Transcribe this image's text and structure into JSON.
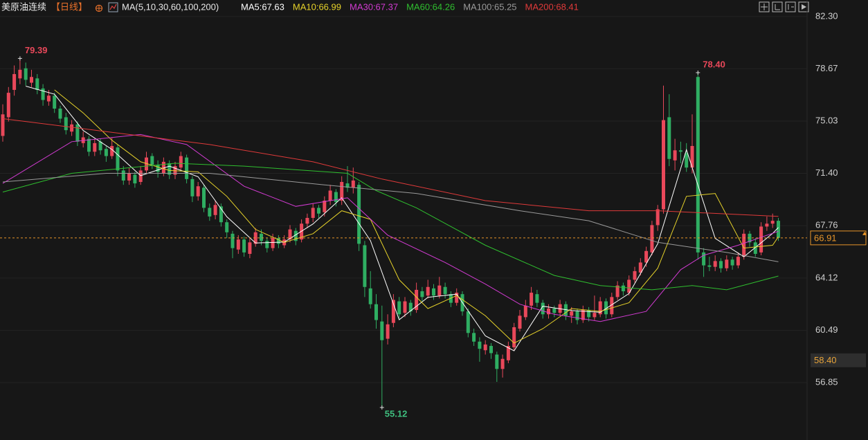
{
  "chart_data": {
    "type": "candlestick",
    "title": "美原油连续",
    "period": "【日线】",
    "indicator": "MA(5,10,30,60,100,200)",
    "up_color": "#e9485a",
    "down_color": "#2fae62",
    "ylim": [
      54.11,
      83.45
    ],
    "yticks": [
      {
        "value": 82.3,
        "label": "82.30"
      },
      78.67,
      75.03,
      {
        "value": 71.4,
        "label": "71.40"
      },
      67.76,
      64.12,
      60.49,
      56.85
    ],
    "grid": true,
    "max_labels": [
      {
        "value": 79.39,
        "label": "79.39"
      },
      {
        "value": 78.4,
        "label": "78.40"
      }
    ],
    "min_labels": [
      {
        "value": 55.12,
        "label": "55.12"
      }
    ],
    "last_price": 66.91,
    "last_price_color": "#e8962a",
    "price_marker": {
      "value": 58.4,
      "label": "58.40"
    },
    "ohlc": [
      [
        74.0,
        76.2,
        73.6,
        75.5
      ],
      [
        75.3,
        77.4,
        75.0,
        77.0
      ],
      [
        77.2,
        78.9,
        76.8,
        78.3
      ],
      [
        78.0,
        79.39,
        77.6,
        78.6
      ],
      [
        78.7,
        79.1,
        77.5,
        77.9
      ],
      [
        77.7,
        78.6,
        77.4,
        78.1
      ],
      [
        78.0,
        78.3,
        76.9,
        77.2
      ],
      [
        77.3,
        77.6,
        76.1,
        76.5
      ],
      [
        76.4,
        77.2,
        76.1,
        76.8
      ],
      [
        76.8,
        77.0,
        75.6,
        75.9
      ],
      [
        75.9,
        76.1,
        74.9,
        75.2
      ],
      [
        75.3,
        75.6,
        74.1,
        74.4
      ],
      [
        74.3,
        75.1,
        74.0,
        74.8
      ],
      [
        74.8,
        75.0,
        73.3,
        73.6
      ],
      [
        73.5,
        74.3,
        73.2,
        73.9
      ],
      [
        73.8,
        74.0,
        72.6,
        72.9
      ],
      [
        72.9,
        73.8,
        72.6,
        73.5
      ],
      [
        73.6,
        73.8,
        72.7,
        73.0
      ],
      [
        73.1,
        73.3,
        72.2,
        72.6
      ],
      [
        72.6,
        73.9,
        72.4,
        73.3
      ],
      [
        73.2,
        73.4,
        71.2,
        71.6
      ],
      [
        71.6,
        71.9,
        70.6,
        70.9
      ],
      [
        70.9,
        71.8,
        70.6,
        71.4
      ],
      [
        71.3,
        71.5,
        70.4,
        70.7
      ],
      [
        70.8,
        71.9,
        70.6,
        71.6
      ],
      [
        71.6,
        72.9,
        71.4,
        72.5
      ],
      [
        72.6,
        72.8,
        71.7,
        72.0
      ],
      [
        72.0,
        72.3,
        71.1,
        71.5
      ],
      [
        71.4,
        72.5,
        71.2,
        72.2
      ],
      [
        72.1,
        72.3,
        71.0,
        71.3
      ],
      [
        71.3,
        72.2,
        71.0,
        71.9
      ],
      [
        71.8,
        72.9,
        71.6,
        72.6
      ],
      [
        72.5,
        72.7,
        70.7,
        71.0
      ],
      [
        71.0,
        71.2,
        69.4,
        69.8
      ],
      [
        69.8,
        70.8,
        69.5,
        70.5
      ],
      [
        70.4,
        70.6,
        68.7,
        69.0
      ],
      [
        69.0,
        69.3,
        68.1,
        68.4
      ],
      [
        68.5,
        69.5,
        68.2,
        69.2
      ],
      [
        69.1,
        69.3,
        67.7,
        68.0
      ],
      [
        68.0,
        68.2,
        66.9,
        67.3
      ],
      [
        67.2,
        67.4,
        65.5,
        66.2
      ],
      [
        66.1,
        67.1,
        65.8,
        66.8
      ],
      [
        66.8,
        67.0,
        65.6,
        65.9
      ],
      [
        65.8,
        66.9,
        65.5,
        66.6
      ],
      [
        66.5,
        67.6,
        66.3,
        67.3
      ],
      [
        67.2,
        67.5,
        66.4,
        66.7
      ],
      [
        66.7,
        66.9,
        65.9,
        66.2
      ],
      [
        66.2,
        67.2,
        66.0,
        66.9
      ],
      [
        66.9,
        67.1,
        66.2,
        66.5
      ],
      [
        66.4,
        67.1,
        66.2,
        66.8
      ],
      [
        66.8,
        67.8,
        66.6,
        67.5
      ],
      [
        67.4,
        67.6,
        66.4,
        66.7
      ],
      [
        66.8,
        68.2,
        66.6,
        67.9
      ],
      [
        67.9,
        68.6,
        67.6,
        68.3
      ],
      [
        68.3,
        69.3,
        68.0,
        69.0
      ],
      [
        69.0,
        69.2,
        68.3,
        68.6
      ],
      [
        68.7,
        69.8,
        68.4,
        69.5
      ],
      [
        69.5,
        70.6,
        69.2,
        70.2
      ],
      [
        70.1,
        70.3,
        69.1,
        69.4
      ],
      [
        69.5,
        71.2,
        69.2,
        70.8
      ],
      [
        70.7,
        71.9,
        70.1,
        70.4
      ],
      [
        70.4,
        71.8,
        70.0,
        70.9
      ],
      [
        70.6,
        70.8,
        66.0,
        66.5
      ],
      [
        66.4,
        66.7,
        62.8,
        63.5
      ],
      [
        63.4,
        64.6,
        62.0,
        62.3
      ],
      [
        62.3,
        63.0,
        60.6,
        61.2
      ],
      [
        61.1,
        62.2,
        55.12,
        59.8
      ],
      [
        59.9,
        61.6,
        59.5,
        60.9
      ],
      [
        61.0,
        63.0,
        60.7,
        62.6
      ],
      [
        62.5,
        62.8,
        61.3,
        61.6
      ],
      [
        61.7,
        62.8,
        61.4,
        62.5
      ],
      [
        62.4,
        62.6,
        61.5,
        61.8
      ],
      [
        61.9,
        63.8,
        61.7,
        63.3
      ],
      [
        63.2,
        63.5,
        62.5,
        62.8
      ],
      [
        62.9,
        64.0,
        62.7,
        63.5
      ],
      [
        63.4,
        63.7,
        62.6,
        62.9
      ],
      [
        62.9,
        64.2,
        62.7,
        63.6
      ],
      [
        63.5,
        63.8,
        62.7,
        63.0
      ],
      [
        63.0,
        63.2,
        62.1,
        62.4
      ],
      [
        62.4,
        63.4,
        62.2,
        63.1
      ],
      [
        63.0,
        63.2,
        61.5,
        61.8
      ],
      [
        61.8,
        62.0,
        60.0,
        60.3
      ],
      [
        60.3,
        60.6,
        59.4,
        59.7
      ],
      [
        59.7,
        60.0,
        58.3,
        59.2
      ],
      [
        59.1,
        59.8,
        58.8,
        59.5
      ],
      [
        59.4,
        59.6,
        58.5,
        58.9
      ],
      [
        58.8,
        59.0,
        56.9,
        57.8
      ],
      [
        57.8,
        58.8,
        57.2,
        58.5
      ],
      [
        58.4,
        59.7,
        58.2,
        59.4
      ],
      [
        59.3,
        61.0,
        59.1,
        60.7
      ],
      [
        60.6,
        61.9,
        60.4,
        61.5
      ],
      [
        61.4,
        62.6,
        61.2,
        62.2
      ],
      [
        62.2,
        63.5,
        61.9,
        63.1
      ],
      [
        63.0,
        63.3,
        62.1,
        62.4
      ],
      [
        62.4,
        62.6,
        61.3,
        61.6
      ],
      [
        61.6,
        62.3,
        61.3,
        62.0
      ],
      [
        62.0,
        62.2,
        61.4,
        61.7
      ],
      [
        61.7,
        62.6,
        61.5,
        62.3
      ],
      [
        62.3,
        62.5,
        61.2,
        61.5
      ],
      [
        61.5,
        62.1,
        61.0,
        61.8
      ],
      [
        61.8,
        62.0,
        60.9,
        61.2
      ],
      [
        61.2,
        62.2,
        61.0,
        61.9
      ],
      [
        61.9,
        62.1,
        61.1,
        61.4
      ],
      [
        61.4,
        62.9,
        61.2,
        61.7
      ],
      [
        61.6,
        62.8,
        61.4,
        62.5
      ],
      [
        62.5,
        62.7,
        61.3,
        61.6
      ],
      [
        61.6,
        63.1,
        61.4,
        62.8
      ],
      [
        62.8,
        63.9,
        62.6,
        63.6
      ],
      [
        63.6,
        63.8,
        62.9,
        63.2
      ],
      [
        63.1,
        64.3,
        62.9,
        64.0
      ],
      [
        64.0,
        64.9,
        63.8,
        64.6
      ],
      [
        64.5,
        65.5,
        64.3,
        65.2
      ],
      [
        65.2,
        66.3,
        64.9,
        66.0
      ],
      [
        65.9,
        68.1,
        65.7,
        67.8
      ],
      [
        67.8,
        69.2,
        67.4,
        68.9
      ],
      [
        68.9,
        77.5,
        68.6,
        75.1
      ],
      [
        75.3,
        76.9,
        71.9,
        72.4
      ],
      [
        72.3,
        73.8,
        71.6,
        73.0
      ],
      [
        73.0,
        73.6,
        72.1,
        72.9
      ],
      [
        72.8,
        73.5,
        71.5,
        71.8
      ],
      [
        71.8,
        75.5,
        71.4,
        73.3
      ],
      [
        78.1,
        78.4,
        65.4,
        65.9
      ],
      [
        65.9,
        66.2,
        64.2,
        65.0
      ],
      [
        65.0,
        65.6,
        64.6,
        64.9
      ],
      [
        64.9,
        65.7,
        64.6,
        65.3
      ],
      [
        65.3,
        65.5,
        64.5,
        64.8
      ],
      [
        64.8,
        65.7,
        64.6,
        65.4
      ],
      [
        65.4,
        65.6,
        64.7,
        65.0
      ],
      [
        65.0,
        65.9,
        64.8,
        65.6
      ],
      [
        65.6,
        67.5,
        65.4,
        67.2
      ],
      [
        67.2,
        67.4,
        66.3,
        66.6
      ],
      [
        66.6,
        66.9,
        65.6,
        65.8
      ],
      [
        65.9,
        68.0,
        65.7,
        67.7
      ],
      [
        67.7,
        68.4,
        67.4,
        67.9
      ],
      [
        67.9,
        68.6,
        67.6,
        68.1
      ],
      [
        68.1,
        68.3,
        66.7,
        66.91
      ]
    ],
    "series": [
      {
        "name": "MA5:67.63",
        "color": "#ffffff",
        "x": [
          4,
          9,
          14,
          19,
          24,
          29,
          34,
          39,
          44,
          49,
          54,
          59,
          64,
          69,
          74,
          79,
          84,
          89,
          94,
          99,
          104,
          109,
          114,
          119,
          124,
          129,
          134,
          135
        ],
        "values": [
          77.46,
          76.9,
          74.38,
          73.06,
          71.24,
          71.9,
          71.16,
          68.38,
          66.56,
          66.62,
          67.88,
          69.7,
          66.72,
          61.22,
          62.78,
          63.0,
          60.1,
          59.06,
          62.16,
          61.86,
          61.74,
          63.04,
          66.5,
          73.04,
          66.88,
          65.6,
          67.22,
          67.63
        ]
      },
      {
        "name": "MA10:66.99",
        "color": "#e6d22a",
        "x": [
          9,
          14,
          19,
          24,
          29,
          34,
          39,
          44,
          49,
          54,
          59,
          64,
          69,
          74,
          79,
          84,
          89,
          94,
          99,
          104,
          109,
          114,
          119,
          124,
          129,
          134,
          135
        ],
        "values": [
          77.2,
          75.6,
          73.7,
          72.2,
          71.6,
          71.5,
          69.8,
          67.5,
          66.6,
          67.2,
          68.8,
          68.2,
          64.0,
          62.0,
          62.9,
          61.5,
          59.6,
          60.6,
          62.0,
          61.8,
          62.4,
          64.8,
          69.8,
          70.0,
          66.2,
          66.4,
          66.99
        ]
      },
      {
        "name": "MA30:67.37",
        "color": "#d23bd2",
        "x": [
          0,
          12,
          24,
          32,
          42,
          51,
          60,
          67,
          77,
          84,
          90,
          96,
          104,
          112,
          118,
          122,
          128,
          135
        ],
        "values": [
          70.7,
          73.6,
          74.1,
          73.4,
          70.5,
          69.1,
          69.7,
          67.1,
          65.2,
          63.7,
          62.3,
          61.6,
          61.1,
          61.8,
          64.7,
          65.7,
          66.4,
          67.37
        ]
      },
      {
        "name": "MA60:64.26",
        "color": "#2fbf2f",
        "x": [
          0,
          12,
          30,
          42,
          60,
          65,
          72,
          84,
          96,
          104,
          113,
          120,
          126,
          135
        ],
        "values": [
          70.1,
          71.4,
          72.1,
          71.9,
          71.4,
          70.2,
          69.0,
          66.4,
          64.3,
          63.6,
          63.3,
          63.6,
          63.3,
          64.26
        ]
      },
      {
        "name": "MA100:65.25",
        "color": "#9a9a9a",
        "x": [
          0,
          18,
          36,
          56,
          72,
          90,
          102,
          114,
          126,
          135
        ],
        "values": [
          70.8,
          71.4,
          71.4,
          70.6,
          70.0,
          68.8,
          68.1,
          66.6,
          65.9,
          65.25
        ]
      },
      {
        "name": "MA200:68.41",
        "color": "#e03a3a",
        "x": [
          0,
          18,
          36,
          54,
          66,
          84,
          102,
          114,
          135
        ],
        "values": [
          75.2,
          74.3,
          73.4,
          72.2,
          71.0,
          69.5,
          68.8,
          68.8,
          68.41
        ]
      }
    ]
  }
}
